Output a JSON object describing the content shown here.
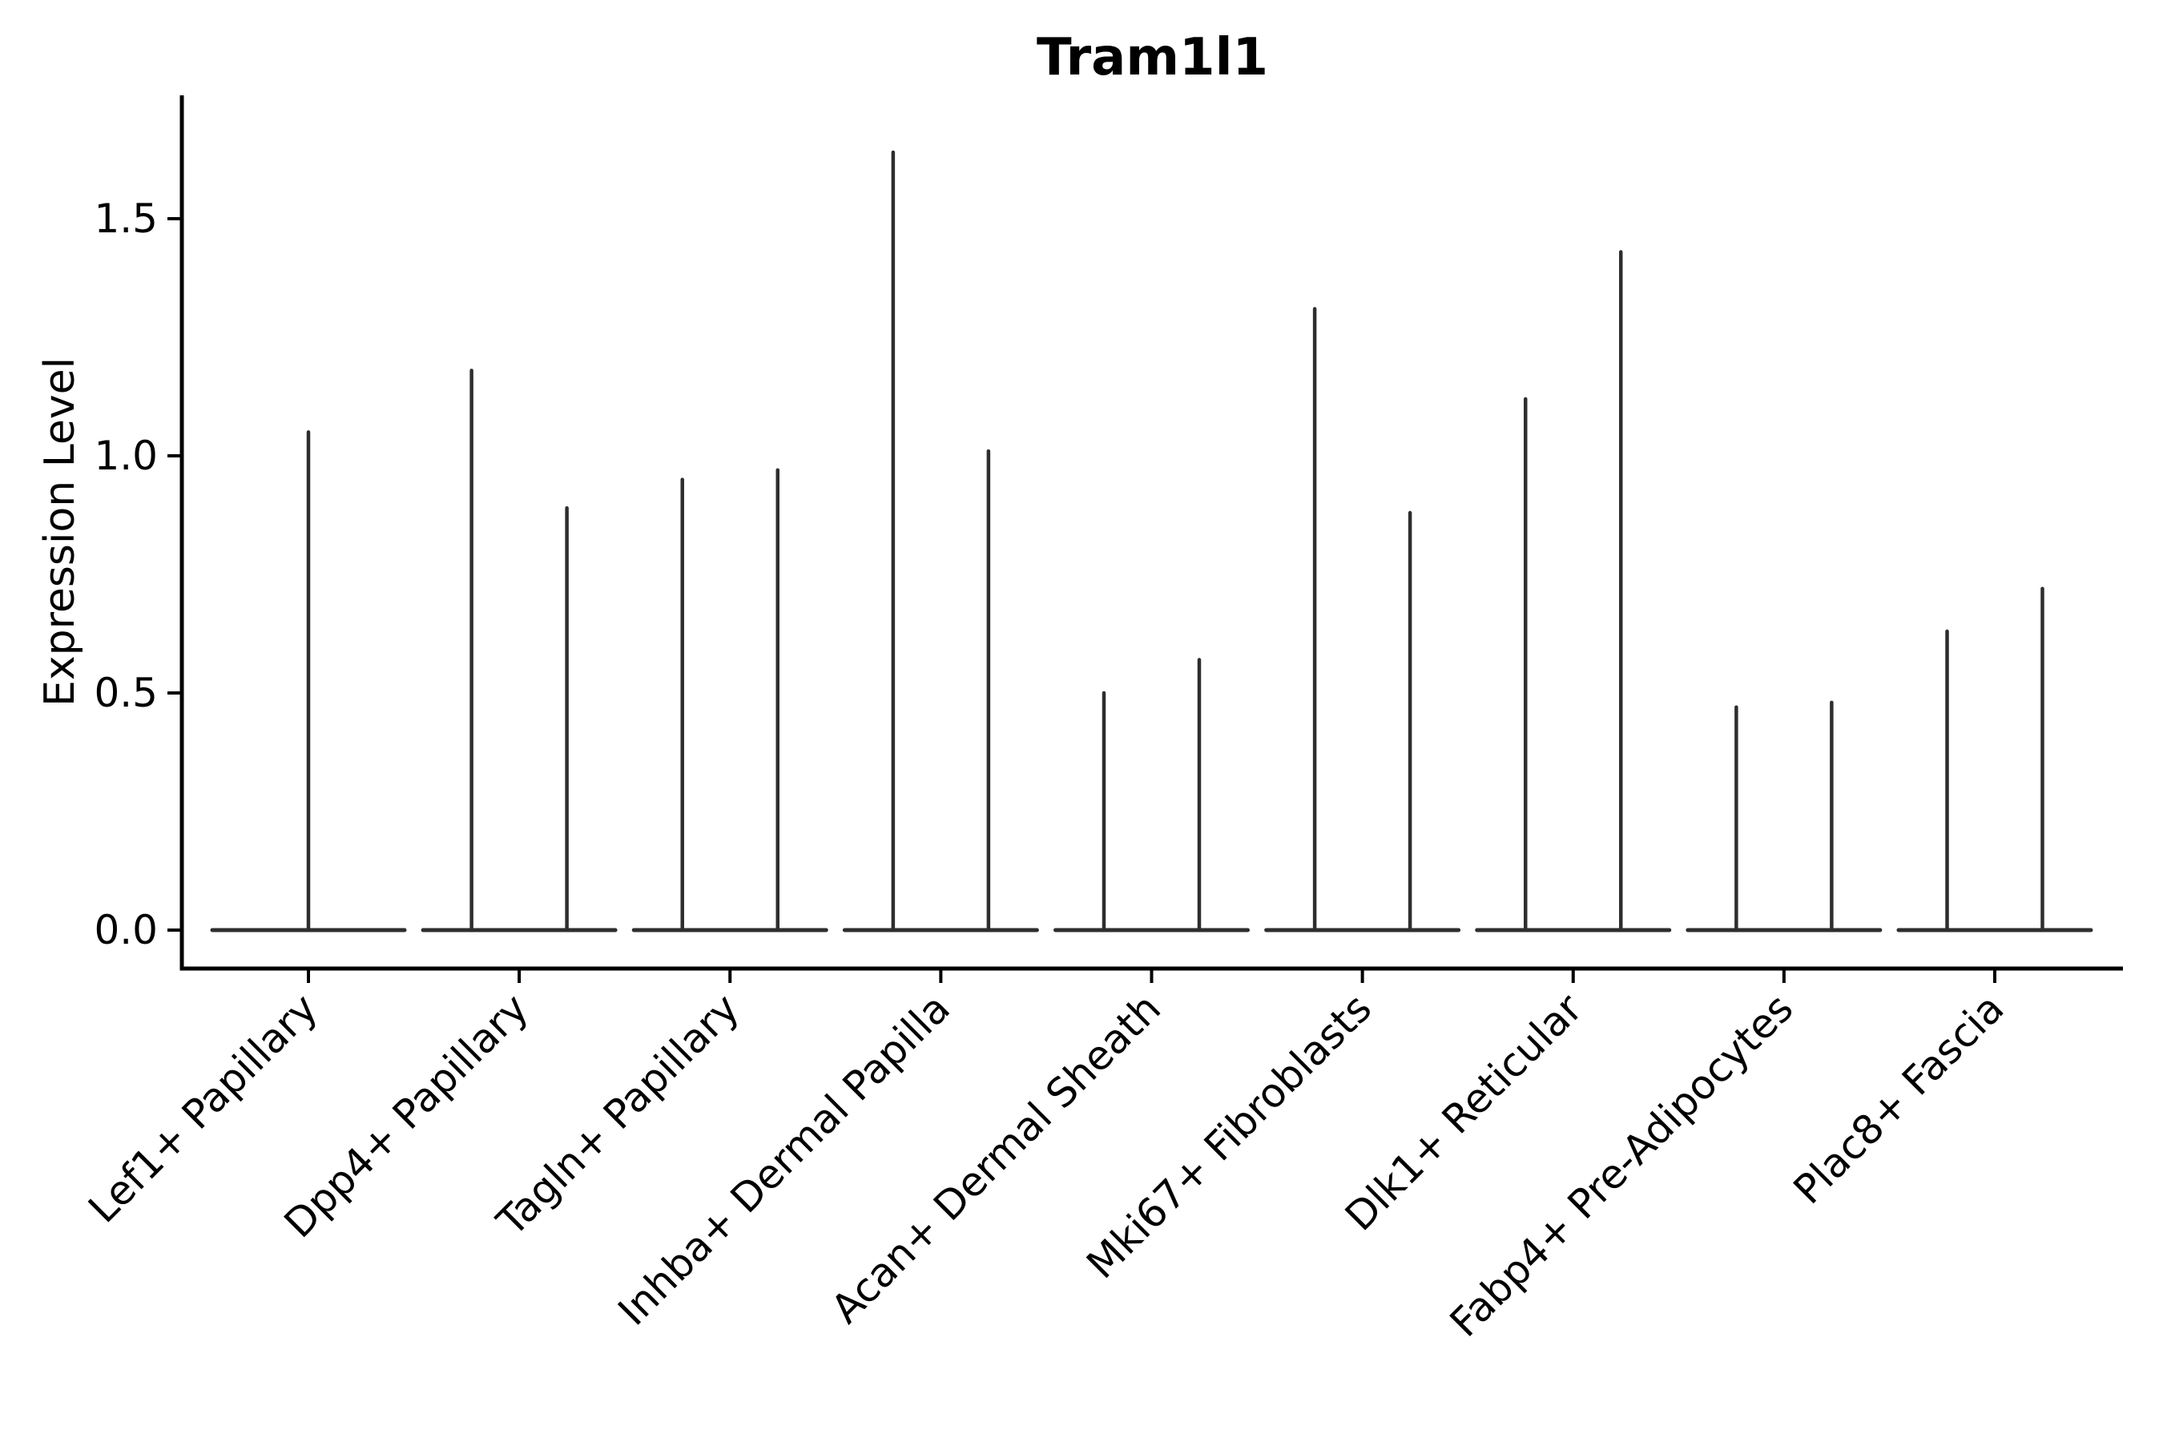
{
  "chart_data": {
    "type": "violin",
    "title": "Tram1l1",
    "xlabel": "",
    "ylabel": "Expression Level",
    "ytick_labels": [
      "0.0",
      "0.5",
      "1.0",
      "1.5"
    ],
    "ytick_values": [
      0.0,
      0.5,
      1.0,
      1.5
    ],
    "ylim": [
      -0.08,
      1.76
    ],
    "grid": false,
    "legend": null,
    "categories": [
      "Lef1+ Papillary",
      "Dpp4+ Papillary",
      "Tagln+ Papillary",
      "Inhba+ Dermal Papilla",
      "Acan+ Dermal Sheath",
      "Mki67+ Fibroblasts",
      "Dlk1+ Reticular",
      "Fabp4+ Pre-Adipocytes",
      "Plac8+ Fascia"
    ],
    "violins": [
      {
        "category": "Lef1+ Papillary",
        "baseline_value": 0.0,
        "spike_maxima": [
          1.05
        ]
      },
      {
        "category": "Dpp4+ Papillary",
        "baseline_value": 0.0,
        "spike_maxima": [
          1.18,
          0.89
        ]
      },
      {
        "category": "Tagln+ Papillary",
        "baseline_value": 0.0,
        "spike_maxima": [
          0.95,
          0.97
        ]
      },
      {
        "category": "Inhba+ Dermal Papilla",
        "baseline_value": 0.0,
        "spike_maxima": [
          1.64,
          1.01
        ]
      },
      {
        "category": "Acan+ Dermal Sheath",
        "baseline_value": 0.0,
        "spike_maxima": [
          0.5,
          0.57
        ]
      },
      {
        "category": "Mki67+ Fibroblasts",
        "baseline_value": 0.0,
        "spike_maxima": [
          1.31,
          0.88
        ]
      },
      {
        "category": "Dlk1+ Reticular",
        "baseline_value": 0.0,
        "spike_maxima": [
          1.12,
          1.43
        ]
      },
      {
        "category": "Fabp4+ Pre-Adipocytes",
        "baseline_value": 0.0,
        "spike_maxima": [
          0.47,
          0.48
        ]
      },
      {
        "category": "Plac8+ Fascia",
        "baseline_value": 0.0,
        "spike_maxima": [
          0.63,
          0.72
        ]
      }
    ],
    "colors": {
      "violin": "#2e2e2e",
      "axis": "#000000",
      "text": "#000000",
      "background": "#ffffff"
    }
  }
}
